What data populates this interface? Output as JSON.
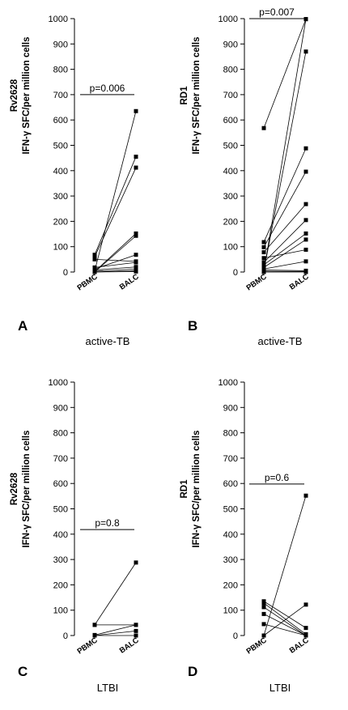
{
  "chart_data": [
    {
      "panel": "A",
      "type": "scatter",
      "group": "active-TB",
      "ylabel_line1": "Rv2628",
      "ylabel_line2": "IFN-γ SFC/per million cells",
      "categories": [
        "PBMC",
        "BALC"
      ],
      "ylim": [
        0,
        1000
      ],
      "yticks": [
        0,
        100,
        200,
        300,
        400,
        500,
        600,
        700,
        800,
        900,
        1000
      ],
      "p_value": "p=0.006",
      "pairs": [
        [
          5,
          635
        ],
        [
          68,
          455
        ],
        [
          60,
          412
        ],
        [
          2,
          152
        ],
        [
          0,
          143
        ],
        [
          12,
          68
        ],
        [
          50,
          42
        ],
        [
          18,
          38
        ],
        [
          8,
          20
        ],
        [
          3,
          12
        ],
        [
          0,
          5
        ],
        [
          0,
          2
        ]
      ]
    },
    {
      "panel": "B",
      "type": "scatter",
      "group": "active-TB",
      "ylabel_line1": "RD1",
      "ylabel_line2": "IFN-γ SFC/per million cells",
      "categories": [
        "PBMC",
        "BALC"
      ],
      "ylim": [
        0,
        1000
      ],
      "yticks": [
        0,
        100,
        200,
        300,
        400,
        500,
        600,
        700,
        800,
        900,
        1000
      ],
      "p_value": "p=0.007",
      "pairs": [
        [
          2,
          998
        ],
        [
          568,
          998
        ],
        [
          5,
          870
        ],
        [
          118,
          488
        ],
        [
          98,
          396
        ],
        [
          78,
          268
        ],
        [
          38,
          205
        ],
        [
          28,
          152
        ],
        [
          18,
          128
        ],
        [
          55,
          88
        ],
        [
          12,
          42
        ],
        [
          8,
          5
        ],
        [
          3,
          2
        ],
        [
          0,
          0
        ]
      ]
    },
    {
      "panel": "C",
      "type": "scatter",
      "group": "LTBI",
      "ylabel_line1": "Rv2628",
      "ylabel_line2": "IFN-γ SFC/per million cells",
      "categories": [
        "PBMC",
        "BALC"
      ],
      "ylim": [
        0,
        1000
      ],
      "yticks": [
        0,
        100,
        200,
        300,
        400,
        500,
        600,
        700,
        800,
        900,
        1000
      ],
      "p_value": "p=0.8",
      "pairs": [
        [
          42,
          288
        ],
        [
          42,
          42
        ],
        [
          2,
          42
        ],
        [
          0,
          18
        ],
        [
          0,
          0
        ]
      ]
    },
    {
      "panel": "D",
      "type": "scatter",
      "group": "LTBI",
      "ylabel_line1": "RD1",
      "ylabel_line2": "IFN-γ SFC/per million cells",
      "categories": [
        "PBMC",
        "BALC"
      ],
      "ylim": [
        0,
        1000
      ],
      "yticks": [
        0,
        100,
        200,
        300,
        400,
        500,
        600,
        700,
        800,
        900,
        1000
      ],
      "p_value": "p=0.6",
      "pairs": [
        [
          0,
          552
        ],
        [
          135,
          30
        ],
        [
          128,
          5
        ],
        [
          112,
          0
        ],
        [
          85,
          0
        ],
        [
          45,
          0
        ],
        [
          0,
          122
        ]
      ]
    }
  ]
}
